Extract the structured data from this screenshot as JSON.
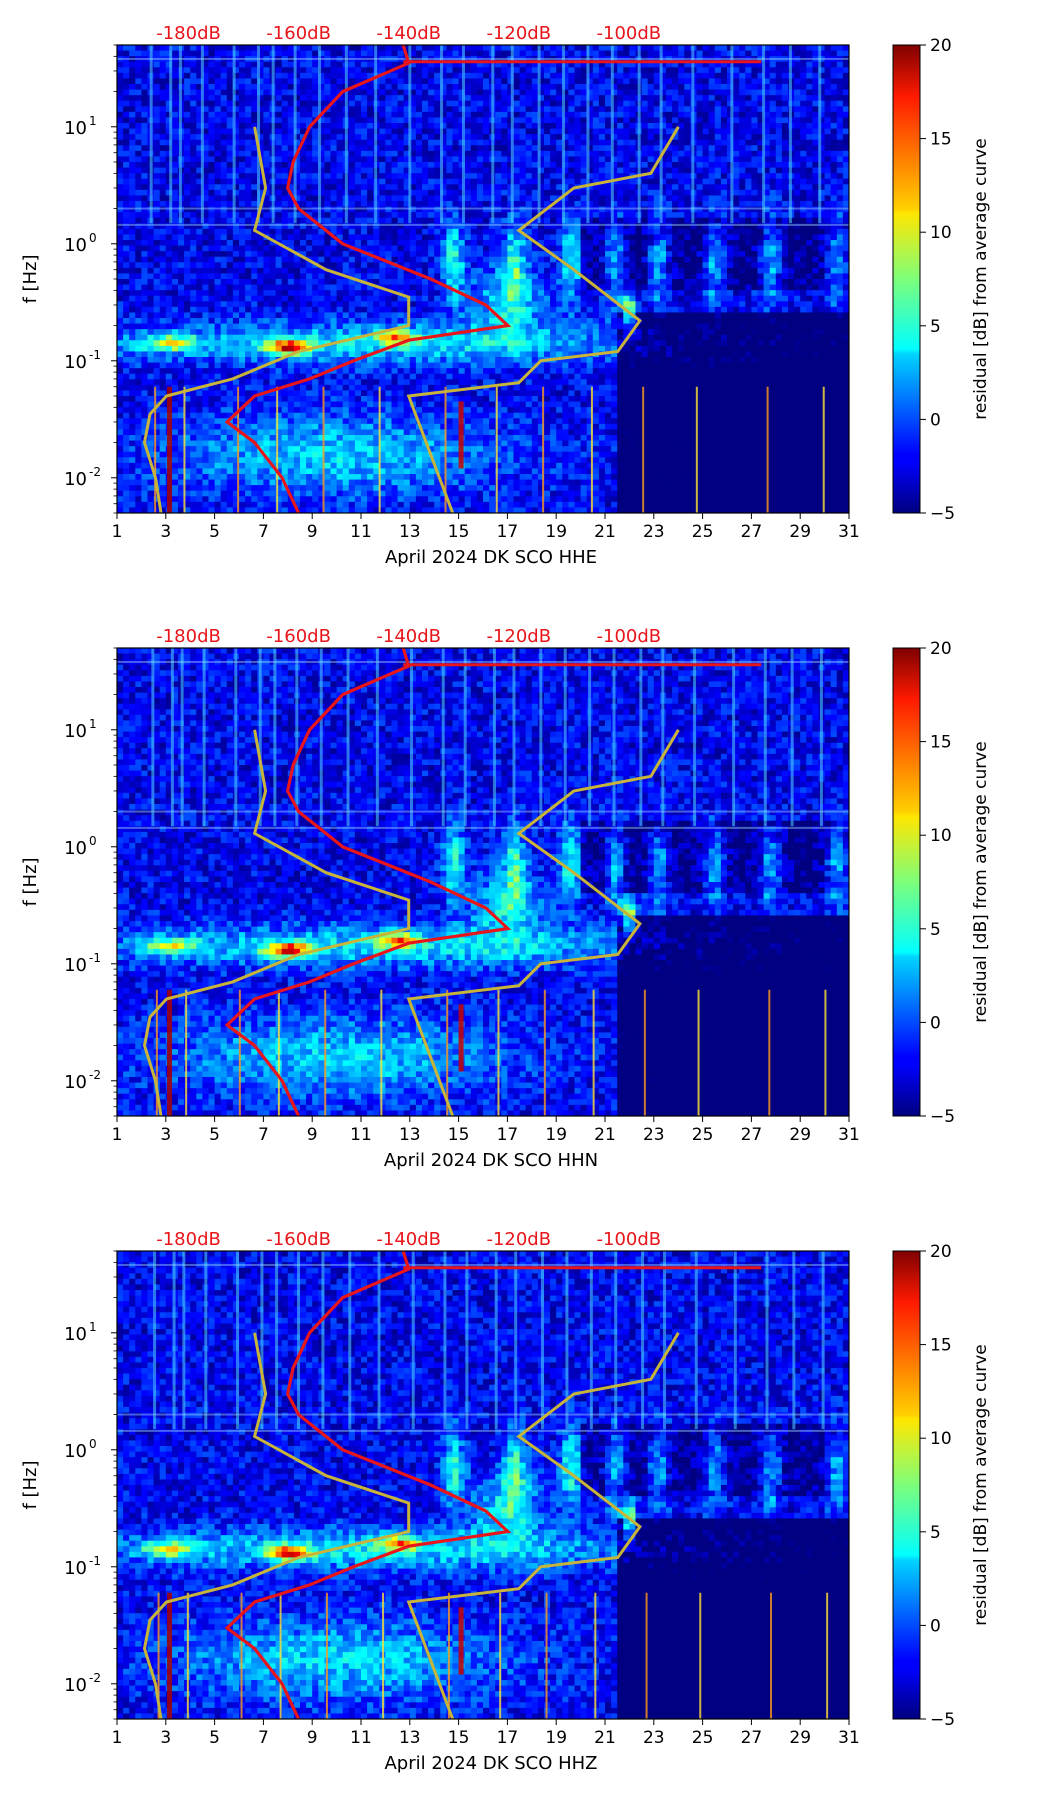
{
  "chart_data": [
    {
      "type": "heatmap",
      "channel": "HHE",
      "xlabel": "April 2024 DK SCO  HHE",
      "ylabel": "f [Hz]",
      "xlim": [
        1,
        31
      ],
      "xticks": [
        "1",
        "3",
        "5",
        "7",
        "9",
        "11",
        "13",
        "15",
        "17",
        "19",
        "21",
        "23",
        "25",
        "27",
        "29",
        "31"
      ],
      "ylim": [
        0.005,
        50
      ],
      "yscale": "log",
      "yticks": [
        {
          "label": "10",
          "exp": "-2",
          "value": 0.01
        },
        {
          "label": "10",
          "exp": "-1",
          "value": 0.1
        },
        {
          "label": "10",
          "exp": "0",
          "value": 1
        },
        {
          "label": "10",
          "exp": "1",
          "value": 10
        }
      ],
      "top_axis_labels": [
        "-180dB",
        "-160dB",
        "-140dB",
        "-120dB",
        "-100dB"
      ],
      "top_axis_values": [
        -180,
        -160,
        -140,
        -120,
        -100
      ],
      "colorbar": {
        "label": "residual [dB] from average curve",
        "min": -5,
        "max": 20,
        "ticks": [
          "−5",
          "0",
          "5",
          "10",
          "15",
          "20"
        ]
      }
    },
    {
      "type": "heatmap",
      "channel": "HHN",
      "xlabel": "April 2024 DK SCO  HHN",
      "ylabel": "f [Hz]",
      "xlim": [
        1,
        31
      ],
      "xticks": [
        "1",
        "3",
        "5",
        "7",
        "9",
        "11",
        "13",
        "15",
        "17",
        "19",
        "21",
        "23",
        "25",
        "27",
        "29",
        "31"
      ],
      "ylim": [
        0.005,
        50
      ],
      "yscale": "log",
      "yticks": [
        {
          "label": "10",
          "exp": "-2",
          "value": 0.01
        },
        {
          "label": "10",
          "exp": "-1",
          "value": 0.1
        },
        {
          "label": "10",
          "exp": "0",
          "value": 1
        },
        {
          "label": "10",
          "exp": "1",
          "value": 10
        }
      ],
      "top_axis_labels": [
        "-180dB",
        "-160dB",
        "-140dB",
        "-120dB",
        "-100dB"
      ],
      "top_axis_values": [
        -180,
        -160,
        -140,
        -120,
        -100
      ],
      "colorbar": {
        "label": "residual [dB] from average curve",
        "min": -5,
        "max": 20,
        "ticks": [
          "−5",
          "0",
          "5",
          "10",
          "15",
          "20"
        ]
      }
    },
    {
      "type": "heatmap",
      "channel": "HHZ",
      "xlabel": "April 2024 DK SCO  HHZ",
      "ylabel": "f [Hz]",
      "xlim": [
        1,
        31
      ],
      "xticks": [
        "1",
        "3",
        "5",
        "7",
        "9",
        "11",
        "13",
        "15",
        "17",
        "19",
        "21",
        "23",
        "25",
        "27",
        "29",
        "31"
      ],
      "ylim": [
        0.005,
        50
      ],
      "yscale": "log",
      "yticks": [
        {
          "label": "10",
          "exp": "-2",
          "value": 0.01
        },
        {
          "label": "10",
          "exp": "-1",
          "value": 0.1
        },
        {
          "label": "10",
          "exp": "0",
          "value": 1
        },
        {
          "label": "10",
          "exp": "1",
          "value": 10
        }
      ],
      "top_axis_labels": [
        "-180dB",
        "-160dB",
        "-140dB",
        "-120dB",
        "-100dB"
      ],
      "top_axis_values": [
        -180,
        -160,
        -140,
        -120,
        -100
      ],
      "colorbar": {
        "label": "residual [dB] from average curve",
        "min": -5,
        "max": 20,
        "ticks": [
          "−5",
          "0",
          "5",
          "10",
          "15",
          "20"
        ]
      }
    }
  ],
  "noise_models": {
    "average_psd_color": "#e8161b",
    "nlnm_nhnm_color": "#c8b43a",
    "average_psd_db_by_freq": [
      {
        "f": 50,
        "db": -141
      },
      {
        "f": 35,
        "db": -140
      },
      {
        "f": 20,
        "db": -152
      },
      {
        "f": 10,
        "db": -158
      },
      {
        "f": 5,
        "db": -161
      },
      {
        "f": 3,
        "db": -162
      },
      {
        "f": 2,
        "db": -160
      },
      {
        "f": 1,
        "db": -152
      },
      {
        "f": 0.5,
        "db": -136
      },
      {
        "f": 0.3,
        "db": -126
      },
      {
        "f": 0.2,
        "db": -122
      },
      {
        "f": 0.15,
        "db": -140
      },
      {
        "f": 0.1,
        "db": -150
      },
      {
        "f": 0.07,
        "db": -158
      },
      {
        "f": 0.05,
        "db": -168
      },
      {
        "f": 0.03,
        "db": -173
      },
      {
        "f": 0.02,
        "db": -168
      },
      {
        "f": 0.01,
        "db": -163
      },
      {
        "f": 0.005,
        "db": -160
      }
    ],
    "nlnm_db_by_freq": [
      {
        "f": 10,
        "db": -168
      },
      {
        "f": 3,
        "db": -166
      },
      {
        "f": 1.3,
        "db": -168
      },
      {
        "f": 0.6,
        "db": -155
      },
      {
        "f": 0.35,
        "db": -140
      },
      {
        "f": 0.2,
        "db": -140
      },
      {
        "f": 0.12,
        "db": -160
      },
      {
        "f": 0.07,
        "db": -172
      },
      {
        "f": 0.05,
        "db": -184
      },
      {
        "f": 0.035,
        "db": -187
      },
      {
        "f": 0.02,
        "db": -188
      },
      {
        "f": 0.01,
        "db": -186
      },
      {
        "f": 0.005,
        "db": -185
      }
    ],
    "nhnm_db_by_freq": [
      {
        "f": 10,
        "db": -91
      },
      {
        "f": 4,
        "db": -96
      },
      {
        "f": 3,
        "db": -110
      },
      {
        "f": 1.3,
        "db": -120
      },
      {
        "f": 0.6,
        "db": -110
      },
      {
        "f": 0.22,
        "db": -98
      },
      {
        "f": 0.12,
        "db": -102
      },
      {
        "f": 0.1,
        "db": -116
      },
      {
        "f": 0.065,
        "db": -120
      },
      {
        "f": 0.05,
        "db": -140
      },
      {
        "f": 0.005,
        "db": -132
      }
    ]
  }
}
